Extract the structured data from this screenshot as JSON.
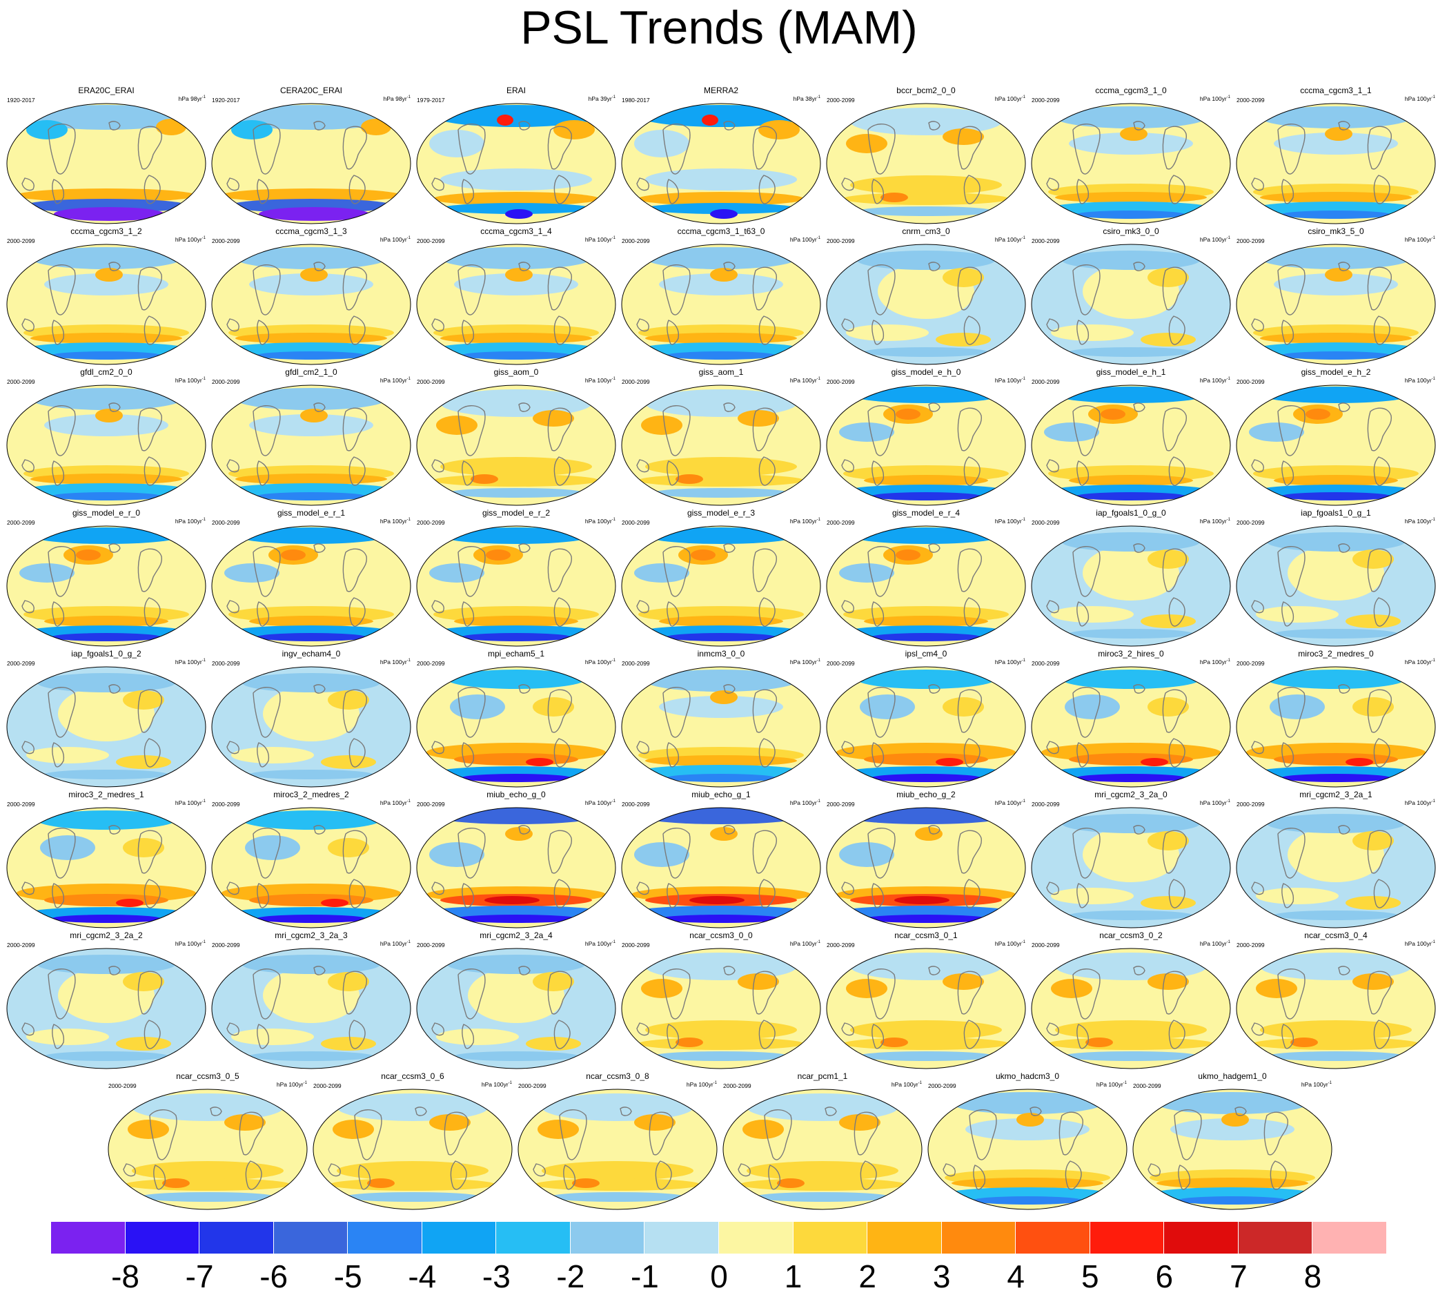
{
  "chart_data": {
    "type": "heatmap",
    "title": "PSL Trends (MAM)",
    "colorbar": {
      "labels": [
        "-8",
        "-7",
        "-6",
        "-5",
        "-4",
        "-3",
        "-2",
        "-1",
        "0",
        "1",
        "2",
        "3",
        "4",
        "5",
        "6",
        "7",
        "8"
      ],
      "colors": [
        "#7b22f0",
        "#2a12f5",
        "#2236ea",
        "#3a66dc",
        "#2a84f4",
        "#10a4f4",
        "#26bef4",
        "#8ccaee",
        "#b6e0f2",
        "#fcf6a2",
        "#fdd93c",
        "#ffb414",
        "#ff8a0e",
        "#ff5010",
        "#ff1c0c",
        "#e00c0c",
        "#cc2828",
        "#ffb2b2"
      ]
    },
    "panels": [
      {
        "title": "ERA20C_ERAI",
        "years": "1920-2017",
        "units": "hPa 98yr",
        "pattern": "reanalysis"
      },
      {
        "title": "CERA20C_ERAI",
        "years": "1920-2017",
        "units": "hPa 98yr",
        "pattern": "reanalysis"
      },
      {
        "title": "ERAI",
        "years": "1979-2017",
        "units": "hPa 39yr",
        "pattern": "erai"
      },
      {
        "title": "MERRA2",
        "years": "1980-2017",
        "units": "hPa 38yr",
        "pattern": "erai"
      },
      {
        "title": "bccr_bcm2_0_0",
        "years": "2000-2099",
        "units": "hPa 100yr",
        "pattern": "warm"
      },
      {
        "title": "cccma_cgcm3_1_0",
        "years": "2000-2099",
        "units": "hPa 100yr",
        "pattern": "band"
      },
      {
        "title": "cccma_cgcm3_1_1",
        "years": "2000-2099",
        "units": "hPa 100yr",
        "pattern": "band"
      },
      {
        "title": "cccma_cgcm3_1_2",
        "years": "2000-2099",
        "units": "hPa 100yr",
        "pattern": "band"
      },
      {
        "title": "cccma_cgcm3_1_3",
        "years": "2000-2099",
        "units": "hPa 100yr",
        "pattern": "band"
      },
      {
        "title": "cccma_cgcm3_1_4",
        "years": "2000-2099",
        "units": "hPa 100yr",
        "pattern": "band"
      },
      {
        "title": "cccma_cgcm3_1_t63_0",
        "years": "2000-2099",
        "units": "hPa 100yr",
        "pattern": "band"
      },
      {
        "title": "cnrm_cm3_0",
        "years": "2000-2099",
        "units": "hPa 100yr",
        "pattern": "weak"
      },
      {
        "title": "csiro_mk3_0_0",
        "years": "2000-2099",
        "units": "hPa 100yr",
        "pattern": "weak"
      },
      {
        "title": "csiro_mk3_5_0",
        "years": "2000-2099",
        "units": "hPa 100yr",
        "pattern": "band"
      },
      {
        "title": "gfdl_cm2_0_0",
        "years": "2000-2099",
        "units": "hPa 100yr",
        "pattern": "band"
      },
      {
        "title": "gfdl_cm2_1_0",
        "years": "2000-2099",
        "units": "hPa 100yr",
        "pattern": "band"
      },
      {
        "title": "giss_aom_0",
        "years": "2000-2099",
        "units": "hPa 100yr",
        "pattern": "warm"
      },
      {
        "title": "giss_aom_1",
        "years": "2000-2099",
        "units": "hPa 100yr",
        "pattern": "warm"
      },
      {
        "title": "giss_model_e_h_0",
        "years": "2000-2099",
        "units": "hPa 100yr",
        "pattern": "pacific"
      },
      {
        "title": "giss_model_e_h_1",
        "years": "2000-2099",
        "units": "hPa 100yr",
        "pattern": "pacific"
      },
      {
        "title": "giss_model_e_h_2",
        "years": "2000-2099",
        "units": "hPa 100yr",
        "pattern": "pacific"
      },
      {
        "title": "giss_model_e_r_0",
        "years": "2000-2099",
        "units": "hPa 100yr",
        "pattern": "pacific"
      },
      {
        "title": "giss_model_e_r_1",
        "years": "2000-2099",
        "units": "hPa 100yr",
        "pattern": "pacific"
      },
      {
        "title": "giss_model_e_r_2",
        "years": "2000-2099",
        "units": "hPa 100yr",
        "pattern": "pacific"
      },
      {
        "title": "giss_model_e_r_3",
        "years": "2000-2099",
        "units": "hPa 100yr",
        "pattern": "pacific"
      },
      {
        "title": "giss_model_e_r_4",
        "years": "2000-2099",
        "units": "hPa 100yr",
        "pattern": "pacific"
      },
      {
        "title": "iap_fgoals1_0_g_0",
        "years": "2000-2099",
        "units": "hPa 100yr",
        "pattern": "weak"
      },
      {
        "title": "iap_fgoals1_0_g_1",
        "years": "2000-2099",
        "units": "hPa 100yr",
        "pattern": "weak"
      },
      {
        "title": "iap_fgoals1_0_g_2",
        "years": "2000-2099",
        "units": "hPa 100yr",
        "pattern": "weak"
      },
      {
        "title": "ingv_echam4_0",
        "years": "2000-2099",
        "units": "hPa 100yr",
        "pattern": "weak"
      },
      {
        "title": "mpi_echam5_1",
        "years": "2000-2099",
        "units": "hPa 100yr",
        "pattern": "strong"
      },
      {
        "title": "inmcm3_0_0",
        "years": "2000-2099",
        "units": "hPa 100yr",
        "pattern": "band"
      },
      {
        "title": "ipsl_cm4_0",
        "years": "2000-2099",
        "units": "hPa 100yr",
        "pattern": "strong"
      },
      {
        "title": "miroc3_2_hires_0",
        "years": "2000-2099",
        "units": "hPa 100yr",
        "pattern": "strong"
      },
      {
        "title": "miroc3_2_medres_0",
        "years": "2000-2099",
        "units": "hPa 100yr",
        "pattern": "strong"
      },
      {
        "title": "miroc3_2_medres_1",
        "years": "2000-2099",
        "units": "hPa 100yr",
        "pattern": "strong"
      },
      {
        "title": "miroc3_2_medres_2",
        "years": "2000-2099",
        "units": "hPa 100yr",
        "pattern": "strong"
      },
      {
        "title": "miub_echo_g_0",
        "years": "2000-2099",
        "units": "hPa 100yr",
        "pattern": "extreme"
      },
      {
        "title": "miub_echo_g_1",
        "years": "2000-2099",
        "units": "hPa 100yr",
        "pattern": "extreme"
      },
      {
        "title": "miub_echo_g_2",
        "years": "2000-2099",
        "units": "hPa 100yr",
        "pattern": "extreme"
      },
      {
        "title": "mri_cgcm2_3_2a_0",
        "years": "2000-2099",
        "units": "hPa 100yr",
        "pattern": "weak"
      },
      {
        "title": "mri_cgcm2_3_2a_1",
        "years": "2000-2099",
        "units": "hPa 100yr",
        "pattern": "weak"
      },
      {
        "title": "mri_cgcm2_3_2a_2",
        "years": "2000-2099",
        "units": "hPa 100yr",
        "pattern": "weak"
      },
      {
        "title": "mri_cgcm2_3_2a_3",
        "years": "2000-2099",
        "units": "hPa 100yr",
        "pattern": "weak"
      },
      {
        "title": "mri_cgcm2_3_2a_4",
        "years": "2000-2099",
        "units": "hPa 100yr",
        "pattern": "weak"
      },
      {
        "title": "ncar_ccsm3_0_0",
        "years": "2000-2099",
        "units": "hPa 100yr",
        "pattern": "warm"
      },
      {
        "title": "ncar_ccsm3_0_1",
        "years": "2000-2099",
        "units": "hPa 100yr",
        "pattern": "warm"
      },
      {
        "title": "ncar_ccsm3_0_2",
        "years": "2000-2099",
        "units": "hPa 100yr",
        "pattern": "warm"
      },
      {
        "title": "ncar_ccsm3_0_4",
        "years": "2000-2099",
        "units": "hPa 100yr",
        "pattern": "warm"
      },
      {
        "title": "ncar_ccsm3_0_5",
        "years": "2000-2099",
        "units": "hPa 100yr",
        "pattern": "warm"
      },
      {
        "title": "ncar_ccsm3_0_6",
        "years": "2000-2099",
        "units": "hPa 100yr",
        "pattern": "warm"
      },
      {
        "title": "ncar_ccsm3_0_8",
        "years": "2000-2099",
        "units": "hPa 100yr",
        "pattern": "warm"
      },
      {
        "title": "ncar_pcm1_1",
        "years": "2000-2099",
        "units": "hPa 100yr",
        "pattern": "warm"
      },
      {
        "title": "ukmo_hadcm3_0",
        "years": "2000-2099",
        "units": "hPa 100yr",
        "pattern": "band"
      },
      {
        "title": "ukmo_hadgem1_0",
        "years": "2000-2099",
        "units": "hPa 100yr",
        "pattern": "band"
      }
    ]
  }
}
